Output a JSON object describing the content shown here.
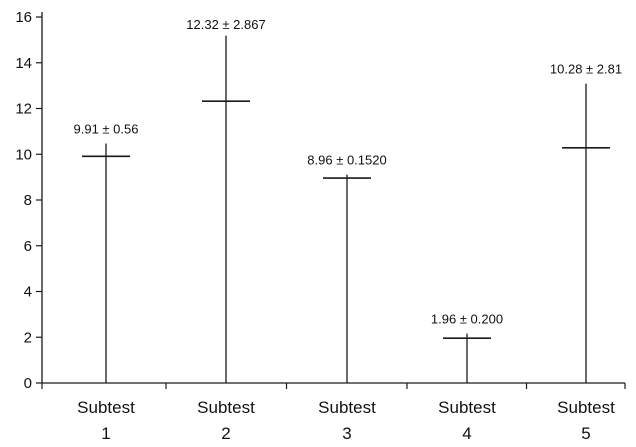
{
  "chart_data": {
    "type": "bar",
    "categories": [
      [
        "Subtest",
        "1"
      ],
      [
        "Subtest",
        "2"
      ],
      [
        "Subtest",
        "3"
      ],
      [
        "Subtest",
        "4"
      ],
      [
        "Subtest",
        "5"
      ]
    ],
    "values": [
      9.91,
      12.32,
      8.96,
      1.96,
      10.28
    ],
    "error": [
      0.56,
      2.867,
      0.152,
      0.2,
      2.81
    ],
    "data_labels": [
      "9.91 ± 0.56",
      "12.32 ± 2.867",
      "8.96 ± 0.1520",
      "1.96 ± 0.200",
      "10.28 ± 2.81"
    ],
    "yticks": [
      0,
      2,
      4,
      6,
      8,
      10,
      12,
      14,
      16
    ],
    "ylim": [
      0,
      16
    ],
    "grid": false,
    "legend": "none",
    "xlabel": "",
    "ylabel": "",
    "title": ""
  }
}
